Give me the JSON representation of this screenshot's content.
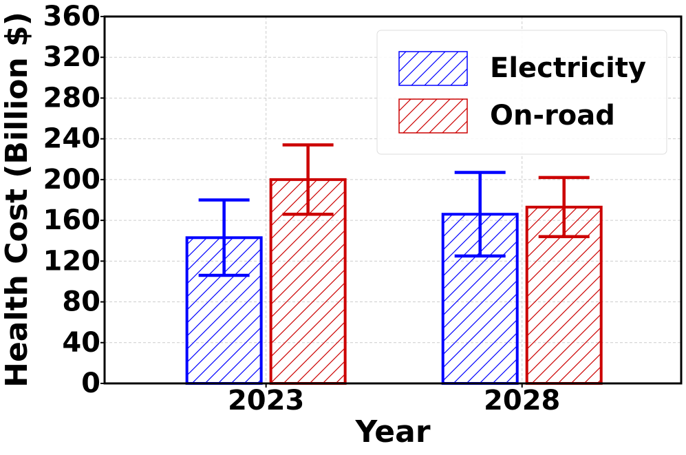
{
  "chart_data": {
    "type": "bar",
    "x_label": "Year",
    "y_label": "Health Cost (Billion $)",
    "categories": [
      "2023",
      "2028"
    ],
    "series": [
      {
        "name": "Electricity",
        "color": "#0000ff",
        "values": [
          143,
          166
        ],
        "errors": [
          37,
          41
        ]
      },
      {
        "name": "On-road",
        "color": "#cc0000",
        "values": [
          200,
          173
        ],
        "errors": [
          34,
          29
        ]
      }
    ],
    "ylim": [
      0,
      360
    ],
    "yticks": [
      0,
      40,
      80,
      120,
      160,
      200,
      240,
      280,
      320,
      360
    ],
    "grid": true,
    "hatch": "/",
    "legend": "upper right"
  }
}
